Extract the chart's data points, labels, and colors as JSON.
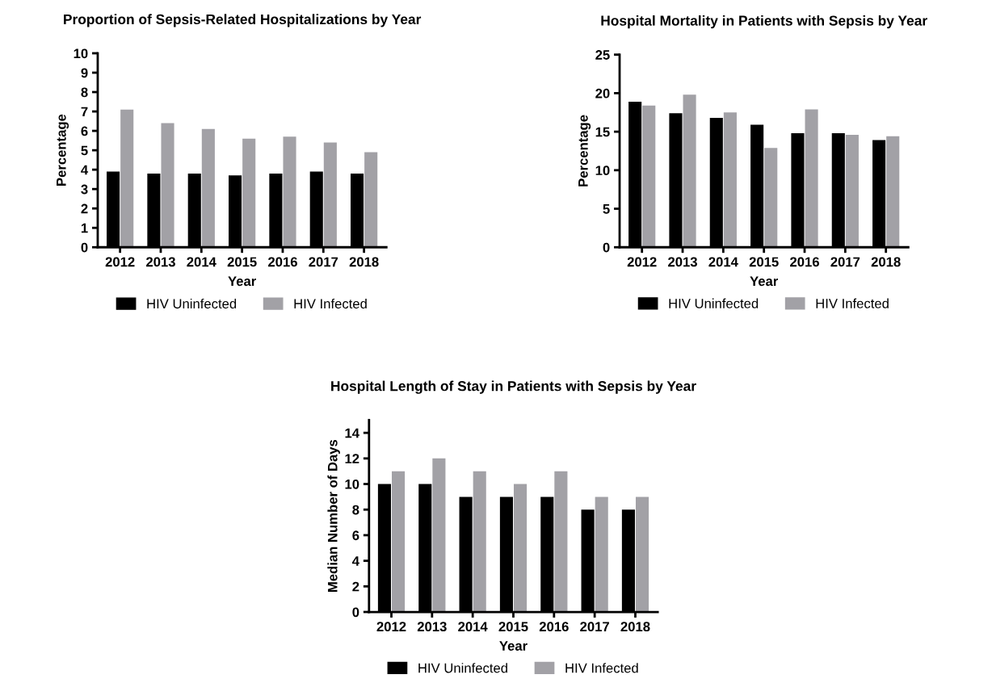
{
  "chart_data": [
    {
      "type": "bar",
      "title": "Proportion of Sepsis-Related Hospitalizations by Year",
      "xlabel": "Year",
      "ylabel": "Percentage",
      "categories": [
        "2012",
        "2013",
        "2014",
        "2015",
        "2016",
        "2017",
        "2018"
      ],
      "series": [
        {
          "name": "HIV Uninfected",
          "color": "#000000",
          "values": [
            3.9,
            3.8,
            3.8,
            3.7,
            3.8,
            3.9,
            3.8
          ]
        },
        {
          "name": "HIV Infected",
          "color": "#a2a1a6",
          "values": [
            7.1,
            6.4,
            6.1,
            5.6,
            5.7,
            5.4,
            4.9
          ]
        }
      ],
      "ylim": [
        0,
        10
      ],
      "yticks": [
        0,
        1,
        2,
        3,
        4,
        5,
        6,
        7,
        8,
        9,
        10
      ],
      "grid": false,
      "legend": "bottom"
    },
    {
      "type": "bar",
      "title": "Hospital Mortality in Patients with Sepsis by Year",
      "xlabel": "Year",
      "ylabel": "Percentage",
      "categories": [
        "2012",
        "2013",
        "2014",
        "2015",
        "2016",
        "2017",
        "2018"
      ],
      "series": [
        {
          "name": "HIV Uninfected",
          "color": "#000000",
          "values": [
            18.9,
            17.4,
            16.8,
            15.9,
            14.8,
            14.8,
            13.9
          ]
        },
        {
          "name": "HIV Infected",
          "color": "#a2a1a6",
          "values": [
            18.4,
            19.8,
            17.5,
            12.9,
            17.9,
            14.6,
            14.4
          ]
        }
      ],
      "ylim": [
        0,
        25
      ],
      "yticks": [
        0,
        5,
        10,
        15,
        20,
        25
      ],
      "grid": false,
      "legend": "bottom"
    },
    {
      "type": "bar",
      "title": "Hospital Length of Stay in Patients with Sepsis by Year",
      "xlabel": "Year",
      "ylabel": "Median Number of Days",
      "categories": [
        "2012",
        "2013",
        "2014",
        "2015",
        "2016",
        "2017",
        "2018"
      ],
      "series": [
        {
          "name": "HIV Uninfected",
          "color": "#000000",
          "values": [
            10,
            10,
            9,
            9,
            9,
            8,
            8
          ]
        },
        {
          "name": "HIV Infected",
          "color": "#a2a1a6",
          "values": [
            11,
            12,
            11,
            10,
            11,
            9,
            9
          ]
        }
      ],
      "ylim": [
        0,
        15
      ],
      "yticks": [
        0,
        2,
        4,
        6,
        8,
        10,
        12,
        14
      ],
      "grid": false,
      "legend": "bottom"
    }
  ]
}
